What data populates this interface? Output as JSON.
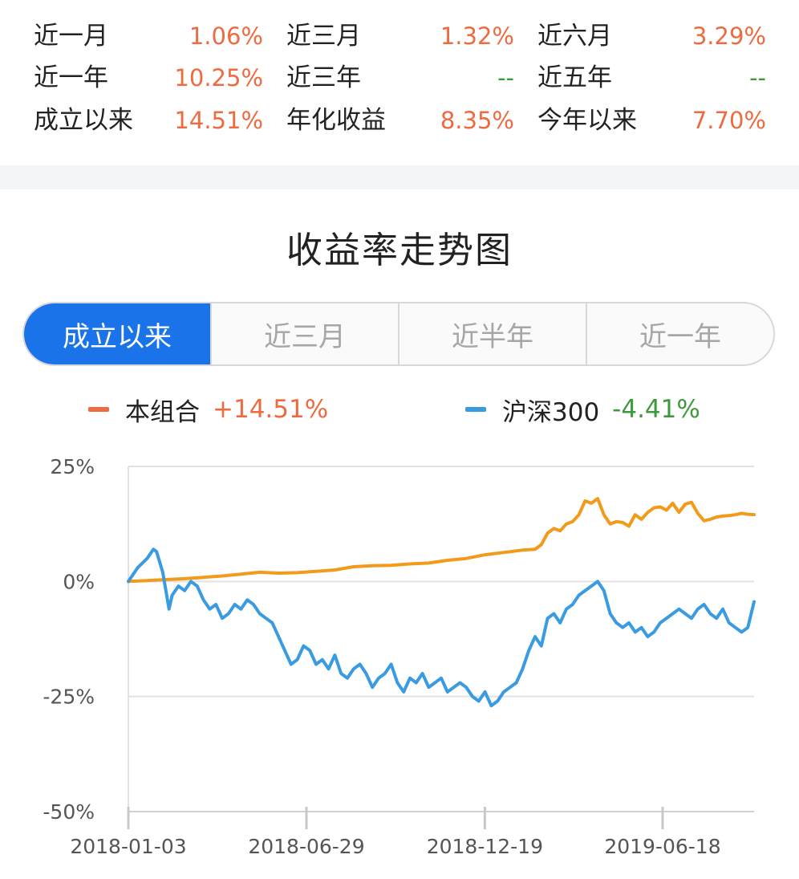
{
  "returns": [
    {
      "label": "近一月",
      "value": "1.06%"
    },
    {
      "label": "近三月",
      "value": "1.32%"
    },
    {
      "label": "近六月",
      "value": "3.29%"
    },
    {
      "label": "近一年",
      "value": "10.25%"
    },
    {
      "label": "近三年",
      "value": "--"
    },
    {
      "label": "近五年",
      "value": "--"
    },
    {
      "label": "成立以来",
      "value": "14.51%"
    },
    {
      "label": "年化收益",
      "value": "8.35%"
    },
    {
      "label": "今年以来",
      "value": "7.70%"
    }
  ],
  "chart_title": "收益率走势图",
  "tabs": [
    {
      "label": "成立以来",
      "active": true
    },
    {
      "label": "近三月",
      "active": false
    },
    {
      "label": "近半年",
      "active": false
    },
    {
      "label": "近一年",
      "active": false
    }
  ],
  "legend": [
    {
      "name": "本组合",
      "value": "+14.51%",
      "color": "#ee6a3f",
      "value_color": "#ee6a3f"
    },
    {
      "name": "沪深300",
      "value": "-4.41%",
      "color": "#3b9be0",
      "value_color": "#3c9a3c"
    }
  ],
  "colors": {
    "portfolio_line": "#f29a1a",
    "index_line": "#3b9be0",
    "accent": "#1a73e8"
  },
  "chart_data": {
    "type": "line",
    "title": "",
    "xlabel": "",
    "ylabel": "",
    "ylim": [
      -50,
      25
    ],
    "y_ticks": [
      25,
      0,
      -25,
      -50
    ],
    "y_tick_labels": [
      "25%",
      "0%",
      "-25%",
      "-50%"
    ],
    "x_tick_labels": [
      "2018-01-03",
      "2018-06-29",
      "2018-12-19",
      "2019-06-18"
    ],
    "x_tick_positions": [
      0,
      0.2846,
      0.5697,
      0.8538
    ],
    "grid": true,
    "series": [
      {
        "name": "本组合",
        "x": [
          0,
          0.03,
          0.06,
          0.09,
          0.12,
          0.15,
          0.18,
          0.21,
          0.24,
          0.27,
          0.3,
          0.33,
          0.36,
          0.39,
          0.42,
          0.45,
          0.48,
          0.51,
          0.54,
          0.57,
          0.6,
          0.63,
          0.65,
          0.66,
          0.67,
          0.68,
          0.69,
          0.7,
          0.71,
          0.72,
          0.73,
          0.74,
          0.75,
          0.76,
          0.77,
          0.78,
          0.79,
          0.8,
          0.81,
          0.82,
          0.83,
          0.84,
          0.85,
          0.86,
          0.87,
          0.88,
          0.89,
          0.9,
          0.91,
          0.92,
          0.93,
          0.94,
          0.95,
          0.96,
          0.97,
          0.98,
          0.99,
          1.0
        ],
        "values": [
          0,
          0.2,
          0.4,
          0.6,
          0.9,
          1.2,
          1.6,
          2.0,
          1.8,
          1.9,
          2.2,
          2.5,
          3.2,
          3.4,
          3.5,
          3.8,
          4.0,
          4.6,
          5.0,
          5.8,
          6.3,
          6.8,
          7.0,
          8.0,
          10.5,
          11.5,
          11.0,
          12.5,
          13.0,
          14.5,
          17.5,
          17.0,
          18.0,
          14.5,
          12.5,
          13.0,
          12.8,
          12.0,
          14.5,
          13.5,
          15.0,
          16.0,
          16.2,
          15.5,
          17.0,
          15.0,
          16.8,
          17.2,
          14.8,
          13.2,
          13.5,
          14.0,
          14.2,
          14.3,
          14.5,
          14.8,
          14.6,
          14.51
        ]
      },
      {
        "name": "沪深300",
        "x": [
          0,
          0.015,
          0.03,
          0.04,
          0.045,
          0.055,
          0.065,
          0.07,
          0.08,
          0.09,
          0.1,
          0.11,
          0.12,
          0.13,
          0.14,
          0.15,
          0.16,
          0.17,
          0.18,
          0.19,
          0.2,
          0.21,
          0.22,
          0.23,
          0.24,
          0.25,
          0.26,
          0.27,
          0.28,
          0.29,
          0.3,
          0.31,
          0.32,
          0.33,
          0.34,
          0.35,
          0.36,
          0.37,
          0.38,
          0.39,
          0.4,
          0.41,
          0.42,
          0.43,
          0.44,
          0.45,
          0.46,
          0.47,
          0.48,
          0.49,
          0.5,
          0.51,
          0.52,
          0.53,
          0.54,
          0.55,
          0.56,
          0.57,
          0.58,
          0.59,
          0.6,
          0.61,
          0.62,
          0.63,
          0.64,
          0.65,
          0.66,
          0.67,
          0.68,
          0.69,
          0.7,
          0.71,
          0.72,
          0.73,
          0.74,
          0.75,
          0.76,
          0.77,
          0.78,
          0.79,
          0.8,
          0.81,
          0.82,
          0.83,
          0.84,
          0.85,
          0.86,
          0.87,
          0.88,
          0.89,
          0.9,
          0.91,
          0.92,
          0.93,
          0.94,
          0.95,
          0.96,
          0.97,
          0.98,
          0.99,
          1.0
        ],
        "values": [
          0,
          3,
          5,
          7,
          6.5,
          2,
          -6,
          -3,
          -1,
          -2,
          0,
          -1,
          -4,
          -6,
          -5,
          -8,
          -7,
          -5,
          -6,
          -4,
          -5,
          -7,
          -8,
          -9,
          -12,
          -15,
          -18,
          -17,
          -14,
          -15,
          -18,
          -17,
          -19,
          -16,
          -20,
          -21,
          -19,
          -18,
          -20,
          -23,
          -21,
          -20,
          -18,
          -22,
          -24,
          -21,
          -22,
          -20,
          -23,
          -22,
          -21,
          -24,
          -23,
          -22,
          -23,
          -25,
          -26,
          -24,
          -27,
          -26,
          -24,
          -23,
          -22,
          -19,
          -15,
          -12,
          -14,
          -8,
          -7,
          -9,
          -6,
          -5,
          -3,
          -2,
          -1,
          0,
          -2,
          -7,
          -9,
          -10,
          -9,
          -11,
          -10,
          -12,
          -11,
          -9,
          -8,
          -7,
          -6,
          -7,
          -8,
          -6,
          -5,
          -7,
          -8,
          -6,
          -9,
          -10,
          -11,
          -10,
          -4.41
        ]
      }
    ]
  }
}
